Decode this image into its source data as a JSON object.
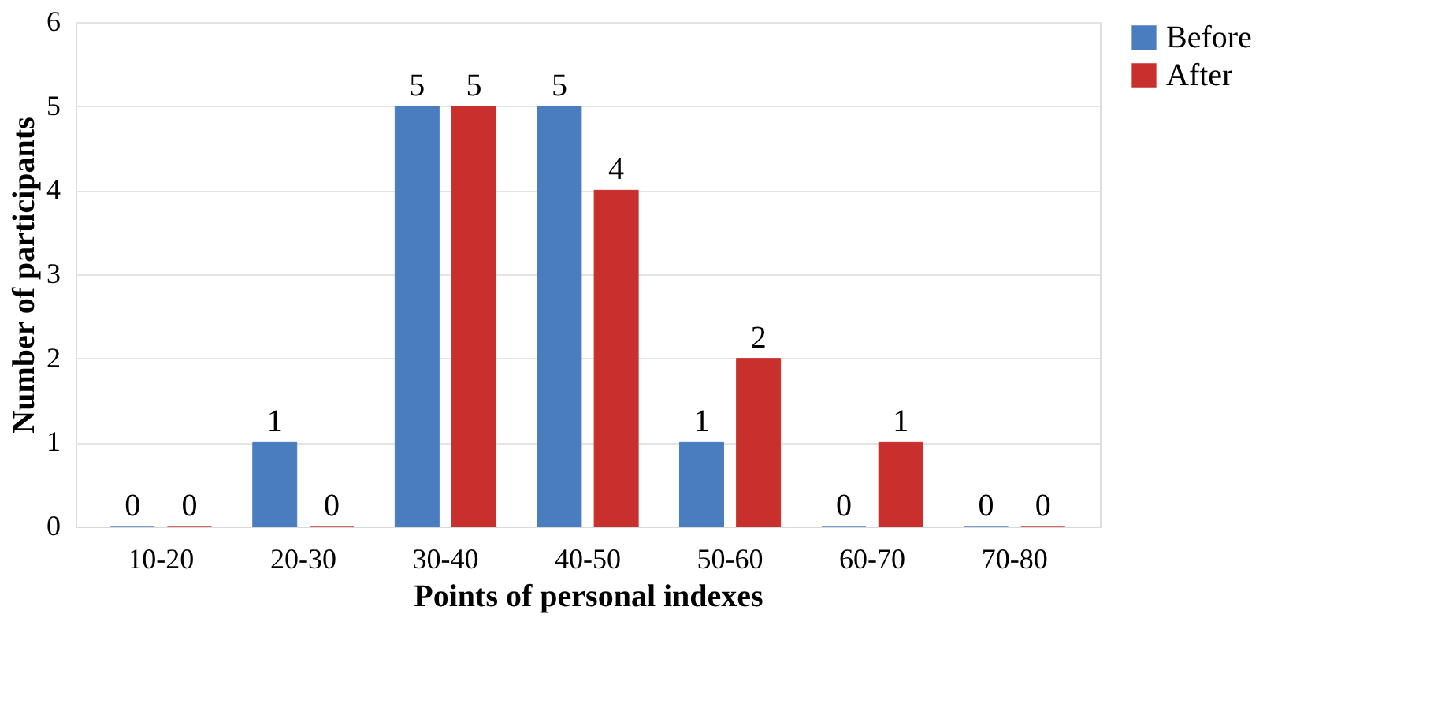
{
  "chart_data": {
    "type": "bar",
    "xlabel": "Points of personal indexes",
    "ylabel": "Number of participants",
    "categories": [
      "10-20",
      "20-30",
      "30-40",
      "40-50",
      "50-60",
      "60-70",
      "70-80"
    ],
    "series": [
      {
        "name": "Before",
        "color": "#4a7dc0",
        "values": [
          0,
          1,
          5,
          5,
          1,
          0,
          0
        ]
      },
      {
        "name": "After",
        "color": "#c8302e",
        "values": [
          0,
          0,
          5,
          4,
          2,
          1,
          0
        ]
      }
    ],
    "ylim": [
      0,
      6
    ],
    "yticks": [
      0,
      1,
      2,
      3,
      4,
      5,
      6
    ],
    "grid": "y",
    "legend": "right",
    "data_labels": true
  }
}
